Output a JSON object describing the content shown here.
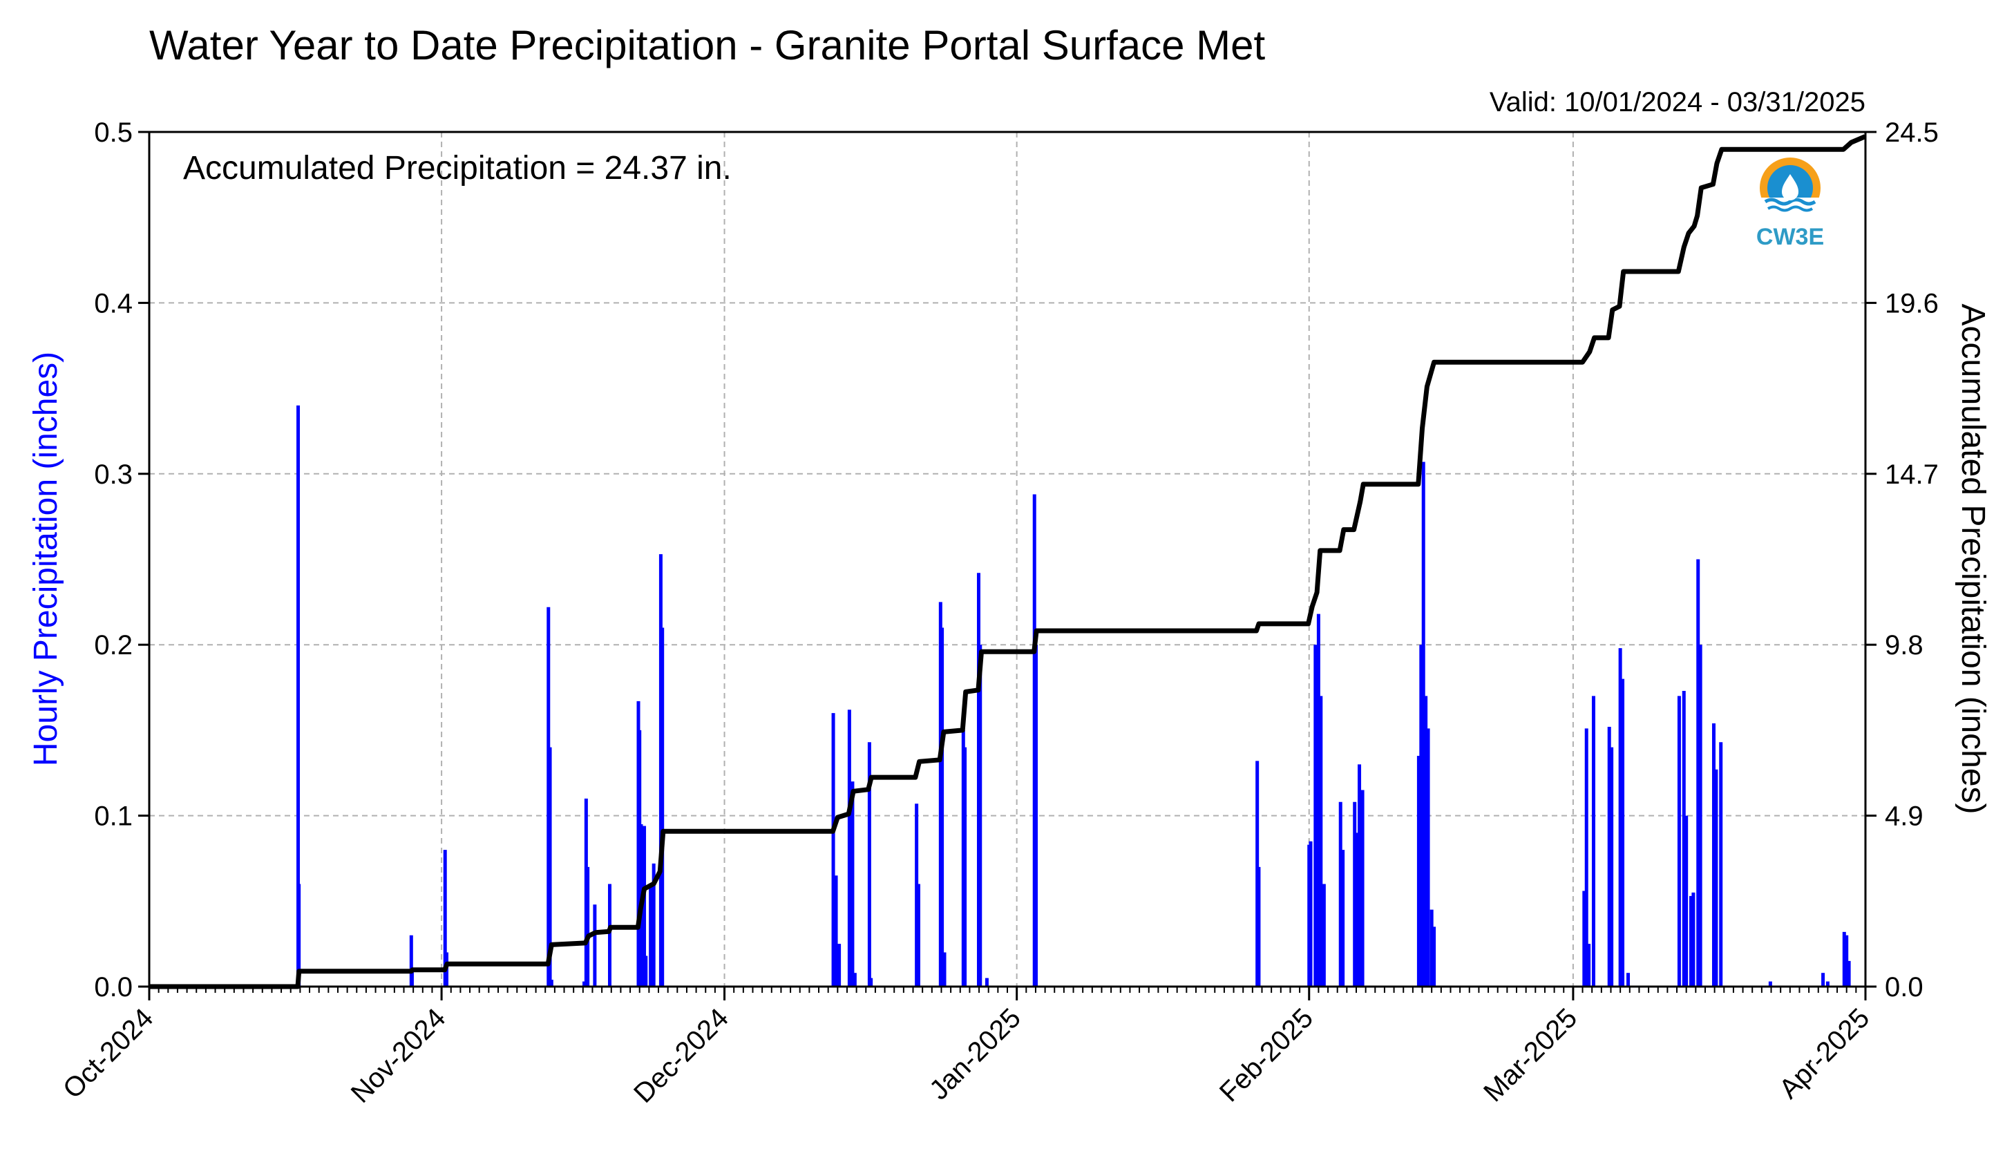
{
  "chart_data": {
    "type": "bar",
    "title": "Water Year to Date Precipitation - Granite Portal Surface Met",
    "subtitle": "Valid: 10/01/2024 - 03/31/2025",
    "annotation": "Accumulated Precipitation = 24.37 in.",
    "ylabel_left": "Hourly Precipitation (inches)",
    "ylabel_right": "Accumulated Precipitation (inches)",
    "ylim_left": [
      0,
      0.5
    ],
    "ylim_right": [
      0,
      24.5
    ],
    "yticks_left": [
      "0.0",
      "0.1",
      "0.2",
      "0.3",
      "0.4",
      "0.5"
    ],
    "yticks_right": [
      "0.0",
      "4.9",
      "9.8",
      "14.7",
      "19.6",
      "24.5"
    ],
    "xlim": [
      "2024-10-01",
      "2025-04-01"
    ],
    "xticks": [
      {
        "date": "2024-10-01",
        "label": "Oct-2024"
      },
      {
        "date": "2024-11-01",
        "label": "Nov-2024"
      },
      {
        "date": "2024-12-01",
        "label": "Dec-2024"
      },
      {
        "date": "2025-01-01",
        "label": "Jan-2025"
      },
      {
        "date": "2025-02-01",
        "label": "Feb-2025"
      },
      {
        "date": "2025-03-01",
        "label": "Mar-2025"
      },
      {
        "date": "2025-04-01",
        "label": "Apr-2025"
      }
    ],
    "grid": true,
    "colors": {
      "hourly": "#0000ff",
      "accumulated": "#000000",
      "grid": "#b0b0b0"
    },
    "hourly_precipitation": [
      {
        "x": "2024-10-16 19:00",
        "y": 0.34
      },
      {
        "x": "2024-10-16 21:00",
        "y": 0.06
      },
      {
        "x": "2024-10-28 19:00",
        "y": 0.03
      },
      {
        "x": "2024-10-28 21:00",
        "y": 0.01
      },
      {
        "x": "2024-11-01 09:00",
        "y": 0.08
      },
      {
        "x": "2024-11-01 13:00",
        "y": 0.02
      },
      {
        "x": "2024-11-12 08:00",
        "y": 0.222
      },
      {
        "x": "2024-11-12 12:00",
        "y": 0.14
      },
      {
        "x": "2024-11-12 16:00",
        "y": 0.004
      },
      {
        "x": "2024-11-16 03:00",
        "y": 0.003
      },
      {
        "x": "2024-11-16 08:00",
        "y": 0.11
      },
      {
        "x": "2024-11-16 12:00",
        "y": 0.07
      },
      {
        "x": "2024-11-17 06:00",
        "y": 0.048
      },
      {
        "x": "2024-11-18 20:00",
        "y": 0.06
      },
      {
        "x": "2024-11-21 21:00",
        "y": 0.167
      },
      {
        "x": "2024-11-22 00:00",
        "y": 0.15
      },
      {
        "x": "2024-11-22 04:00",
        "y": 0.095
      },
      {
        "x": "2024-11-22 08:00",
        "y": 0.08
      },
      {
        "x": "2024-11-22 12:00",
        "y": 0.094
      },
      {
        "x": "2024-11-22 16:00",
        "y": 0.018
      },
      {
        "x": "2024-11-23 04:00",
        "y": 0.06
      },
      {
        "x": "2024-11-23 12:00",
        "y": 0.072
      },
      {
        "x": "2024-11-24 06:00",
        "y": 0.253
      },
      {
        "x": "2024-11-24 10:00",
        "y": 0.21
      },
      {
        "x": "2024-12-12 13:00",
        "y": 0.16
      },
      {
        "x": "2024-12-12 20:00",
        "y": 0.065
      },
      {
        "x": "2024-12-13 04:00",
        "y": 0.025
      },
      {
        "x": "2024-12-14 06:00",
        "y": 0.162
      },
      {
        "x": "2024-12-14 14:00",
        "y": 0.12
      },
      {
        "x": "2024-12-14 20:00",
        "y": 0.008
      },
      {
        "x": "2024-12-16 09:00",
        "y": 0.143
      },
      {
        "x": "2024-12-16 13:00",
        "y": 0.005
      },
      {
        "x": "2024-12-21 09:00",
        "y": 0.107
      },
      {
        "x": "2024-12-21 14:00",
        "y": 0.06
      },
      {
        "x": "2024-12-23 22:00",
        "y": 0.225
      },
      {
        "x": "2024-12-24 02:00",
        "y": 0.21
      },
      {
        "x": "2024-12-24 08:00",
        "y": 0.02
      },
      {
        "x": "2024-12-26 08:00",
        "y": 0.15
      },
      {
        "x": "2024-12-26 12:00",
        "y": 0.14
      },
      {
        "x": "2024-12-27 23:00",
        "y": 0.242
      },
      {
        "x": "2024-12-28 03:00",
        "y": 0.2
      },
      {
        "x": "2024-12-28 20:00",
        "y": 0.005
      },
      {
        "x": "2025-01-02 21:00",
        "y": 0.288
      },
      {
        "x": "2025-01-03 01:00",
        "y": 0.2
      },
      {
        "x": "2025-01-26 12:00",
        "y": 0.132
      },
      {
        "x": "2025-01-26 16:00",
        "y": 0.07
      },
      {
        "x": "2025-02-01 00:00",
        "y": 0.083
      },
      {
        "x": "2025-02-01 04:00",
        "y": 0.085
      },
      {
        "x": "2025-02-01 16:00",
        "y": 0.2
      },
      {
        "x": "2025-02-02 00:00",
        "y": 0.218
      },
      {
        "x": "2025-02-02 06:00",
        "y": 0.17
      },
      {
        "x": "2025-02-02 14:00",
        "y": 0.06
      },
      {
        "x": "2025-02-04 08:00",
        "y": 0.108
      },
      {
        "x": "2025-02-04 14:00",
        "y": 0.08
      },
      {
        "x": "2025-02-05 20:00",
        "y": 0.108
      },
      {
        "x": "2025-02-06 02:00",
        "y": 0.09
      },
      {
        "x": "2025-02-06 08:00",
        "y": 0.13
      },
      {
        "x": "2025-02-06 16:00",
        "y": 0.115
      },
      {
        "x": "2025-02-12 15:00",
        "y": 0.135
      },
      {
        "x": "2025-02-12 21:00",
        "y": 0.2
      },
      {
        "x": "2025-02-13 03:00",
        "y": 0.307
      },
      {
        "x": "2025-02-13 09:00",
        "y": 0.17
      },
      {
        "x": "2025-02-13 15:00",
        "y": 0.151
      },
      {
        "x": "2025-02-14 00:00",
        "y": 0.045
      },
      {
        "x": "2025-02-14 06:00",
        "y": 0.035
      },
      {
        "x": "2025-03-02 04:00",
        "y": 0.056
      },
      {
        "x": "2025-03-02 10:00",
        "y": 0.151
      },
      {
        "x": "2025-03-02 16:00",
        "y": 0.025
      },
      {
        "x": "2025-03-03 04:00",
        "y": 0.17
      },
      {
        "x": "2025-03-04 20:00",
        "y": 0.152
      },
      {
        "x": "2025-03-05 02:00",
        "y": 0.14
      },
      {
        "x": "2025-03-06 00:00",
        "y": 0.198
      },
      {
        "x": "2025-03-06 06:00",
        "y": 0.18
      },
      {
        "x": "2025-03-06 20:00",
        "y": 0.008
      },
      {
        "x": "2025-03-12 06:00",
        "y": 0.17
      },
      {
        "x": "2025-03-12 18:00",
        "y": 0.173
      },
      {
        "x": "2025-03-13 00:00",
        "y": 0.1
      },
      {
        "x": "2025-03-13 12:00",
        "y": 0.053
      },
      {
        "x": "2025-03-13 18:00",
        "y": 0.055
      },
      {
        "x": "2025-03-14 06:00",
        "y": 0.25
      },
      {
        "x": "2025-03-14 12:00",
        "y": 0.2
      },
      {
        "x": "2025-03-15 22:00",
        "y": 0.154
      },
      {
        "x": "2025-03-16 04:00",
        "y": 0.127
      },
      {
        "x": "2025-03-16 16:00",
        "y": 0.143
      },
      {
        "x": "2025-03-21 22:00",
        "y": 0.003
      },
      {
        "x": "2025-03-27 12:00",
        "y": 0.008
      },
      {
        "x": "2025-03-28 00:00",
        "y": 0.003
      },
      {
        "x": "2025-03-29 18:00",
        "y": 0.032
      },
      {
        "x": "2025-03-30 00:00",
        "y": 0.03
      },
      {
        "x": "2025-03-30 06:00",
        "y": 0.015
      }
    ],
    "accumulated_precipitation": [
      {
        "x": "2024-10-01 00:00",
        "y": 0.0
      },
      {
        "x": "2024-10-16 18:00",
        "y": 0.0
      },
      {
        "x": "2024-10-16 21:00",
        "y": 0.44
      },
      {
        "x": "2024-10-28 19:00",
        "y": 0.44
      },
      {
        "x": "2024-10-28 22:00",
        "y": 0.48
      },
      {
        "x": "2024-11-01 08:00",
        "y": 0.48
      },
      {
        "x": "2024-11-01 14:00",
        "y": 0.65
      },
      {
        "x": "2024-11-12 07:00",
        "y": 0.65
      },
      {
        "x": "2024-11-12 16:00",
        "y": 1.2
      },
      {
        "x": "2024-11-16 06:00",
        "y": 1.25
      },
      {
        "x": "2024-11-16 14:00",
        "y": 1.45
      },
      {
        "x": "2024-11-17 08:00",
        "y": 1.55
      },
      {
        "x": "2024-11-18 18:00",
        "y": 1.58
      },
      {
        "x": "2024-11-18 22:00",
        "y": 1.7
      },
      {
        "x": "2024-11-21 20:00",
        "y": 1.7
      },
      {
        "x": "2024-11-22 02:00",
        "y": 2.2
      },
      {
        "x": "2024-11-22 12:00",
        "y": 2.8
      },
      {
        "x": "2024-11-23 12:00",
        "y": 2.95
      },
      {
        "x": "2024-11-24 04:00",
        "y": 3.3
      },
      {
        "x": "2024-11-24 12:00",
        "y": 4.45
      },
      {
        "x": "2024-12-12 12:00",
        "y": 4.45
      },
      {
        "x": "2024-12-13 00:00",
        "y": 4.85
      },
      {
        "x": "2024-12-14 04:00",
        "y": 4.95
      },
      {
        "x": "2024-12-14 16:00",
        "y": 5.6
      },
      {
        "x": "2024-12-16 06:00",
        "y": 5.65
      },
      {
        "x": "2024-12-16 14:00",
        "y": 6.0
      },
      {
        "x": "2024-12-21 06:00",
        "y": 6.0
      },
      {
        "x": "2024-12-21 16:00",
        "y": 6.45
      },
      {
        "x": "2024-12-23 20:00",
        "y": 6.5
      },
      {
        "x": "2024-12-24 06:00",
        "y": 7.3
      },
      {
        "x": "2024-12-26 06:00",
        "y": 7.35
      },
      {
        "x": "2024-12-26 14:00",
        "y": 8.45
      },
      {
        "x": "2024-12-27 22:00",
        "y": 8.5
      },
      {
        "x": "2024-12-28 06:00",
        "y": 9.6
      },
      {
        "x": "2025-01-02 20:00",
        "y": 9.6
      },
      {
        "x": "2025-01-03 02:00",
        "y": 10.2
      },
      {
        "x": "2025-01-26 10:00",
        "y": 10.2
      },
      {
        "x": "2025-01-26 16:00",
        "y": 10.4
      },
      {
        "x": "2025-01-31 22:00",
        "y": 10.4
      },
      {
        "x": "2025-02-01 08:00",
        "y": 10.9
      },
      {
        "x": "2025-02-01 20:00",
        "y": 11.3
      },
      {
        "x": "2025-02-02 04:00",
        "y": 12.5
      },
      {
        "x": "2025-02-04 06:00",
        "y": 12.5
      },
      {
        "x": "2025-02-04 16:00",
        "y": 13.1
      },
      {
        "x": "2025-02-05 18:00",
        "y": 13.1
      },
      {
        "x": "2025-02-06 10:00",
        "y": 13.9
      },
      {
        "x": "2025-02-06 18:00",
        "y": 14.4
      },
      {
        "x": "2025-02-12 14:00",
        "y": 14.4
      },
      {
        "x": "2025-02-13 00:00",
        "y": 16.0
      },
      {
        "x": "2025-02-13 12:00",
        "y": 17.2
      },
      {
        "x": "2025-02-14 06:00",
        "y": 17.9
      },
      {
        "x": "2025-03-02 00:00",
        "y": 17.9
      },
      {
        "x": "2025-03-02 18:00",
        "y": 18.2
      },
      {
        "x": "2025-03-03 06:00",
        "y": 18.6
      },
      {
        "x": "2025-03-04 18:00",
        "y": 18.6
      },
      {
        "x": "2025-03-05 04:00",
        "y": 19.4
      },
      {
        "x": "2025-03-05 22:00",
        "y": 19.5
      },
      {
        "x": "2025-03-06 08:00",
        "y": 20.5
      },
      {
        "x": "2025-03-12 04:00",
        "y": 20.5
      },
      {
        "x": "2025-03-12 18:00",
        "y": 21.2
      },
      {
        "x": "2025-03-13 06:00",
        "y": 21.6
      },
      {
        "x": "2025-03-13 20:00",
        "y": 21.8
      },
      {
        "x": "2025-03-14 04:00",
        "y": 22.1
      },
      {
        "x": "2025-03-14 14:00",
        "y": 22.9
      },
      {
        "x": "2025-03-15 20:00",
        "y": 23.0
      },
      {
        "x": "2025-03-16 06:00",
        "y": 23.6
      },
      {
        "x": "2025-03-16 18:00",
        "y": 24.0
      },
      {
        "x": "2025-03-29 16:00",
        "y": 24.0
      },
      {
        "x": "2025-03-30 12:00",
        "y": 24.2
      },
      {
        "x": "2025-03-31 23:00",
        "y": 24.37
      }
    ]
  },
  "logo": {
    "text": "CW3E",
    "colors": {
      "orange": "#f6a01a",
      "blue": "#1a8fd0",
      "text": "#2e9bc6"
    }
  }
}
